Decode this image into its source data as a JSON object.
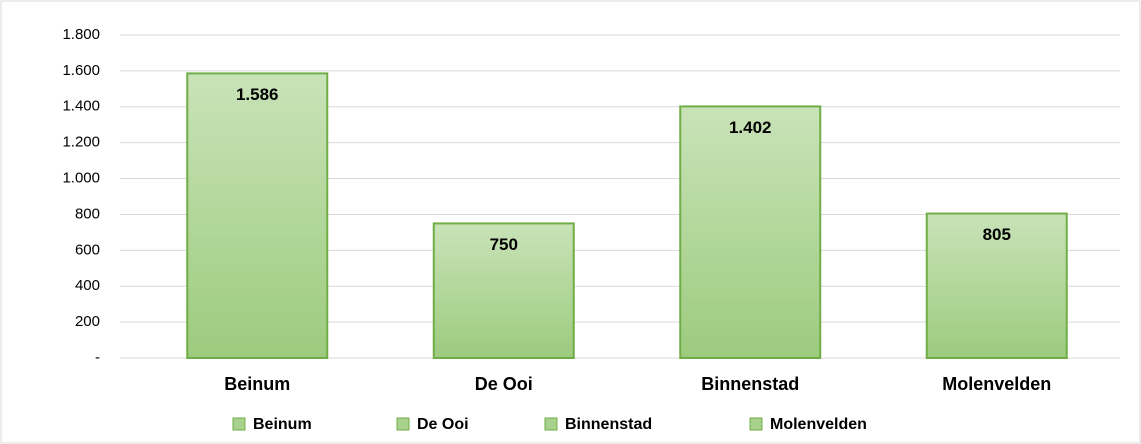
{
  "chart_data": {
    "type": "bar",
    "categories": [
      "Beinum",
      "De Ooi",
      "Binnenstad",
      "Molenvelden"
    ],
    "values": [
      1586,
      750,
      1402,
      805
    ],
    "value_labels": [
      "1.586",
      "750",
      "1.402",
      "805"
    ],
    "color": "#a9d18e",
    "edge_color": "#70ad47",
    "ylim": [
      0,
      1800
    ],
    "yticks": [
      {
        "value": 0,
        "label": "-"
      },
      200,
      400,
      600,
      800,
      {
        "value": 1000,
        "label": "1.000"
      },
      {
        "value": 1200,
        "label": "1.200"
      },
      {
        "value": 1400,
        "label": "1.400"
      },
      {
        "value": 1600,
        "label": "1.600"
      },
      {
        "value": 1800,
        "label": "1.800"
      }
    ],
    "grid": true,
    "legend": "bottom"
  }
}
